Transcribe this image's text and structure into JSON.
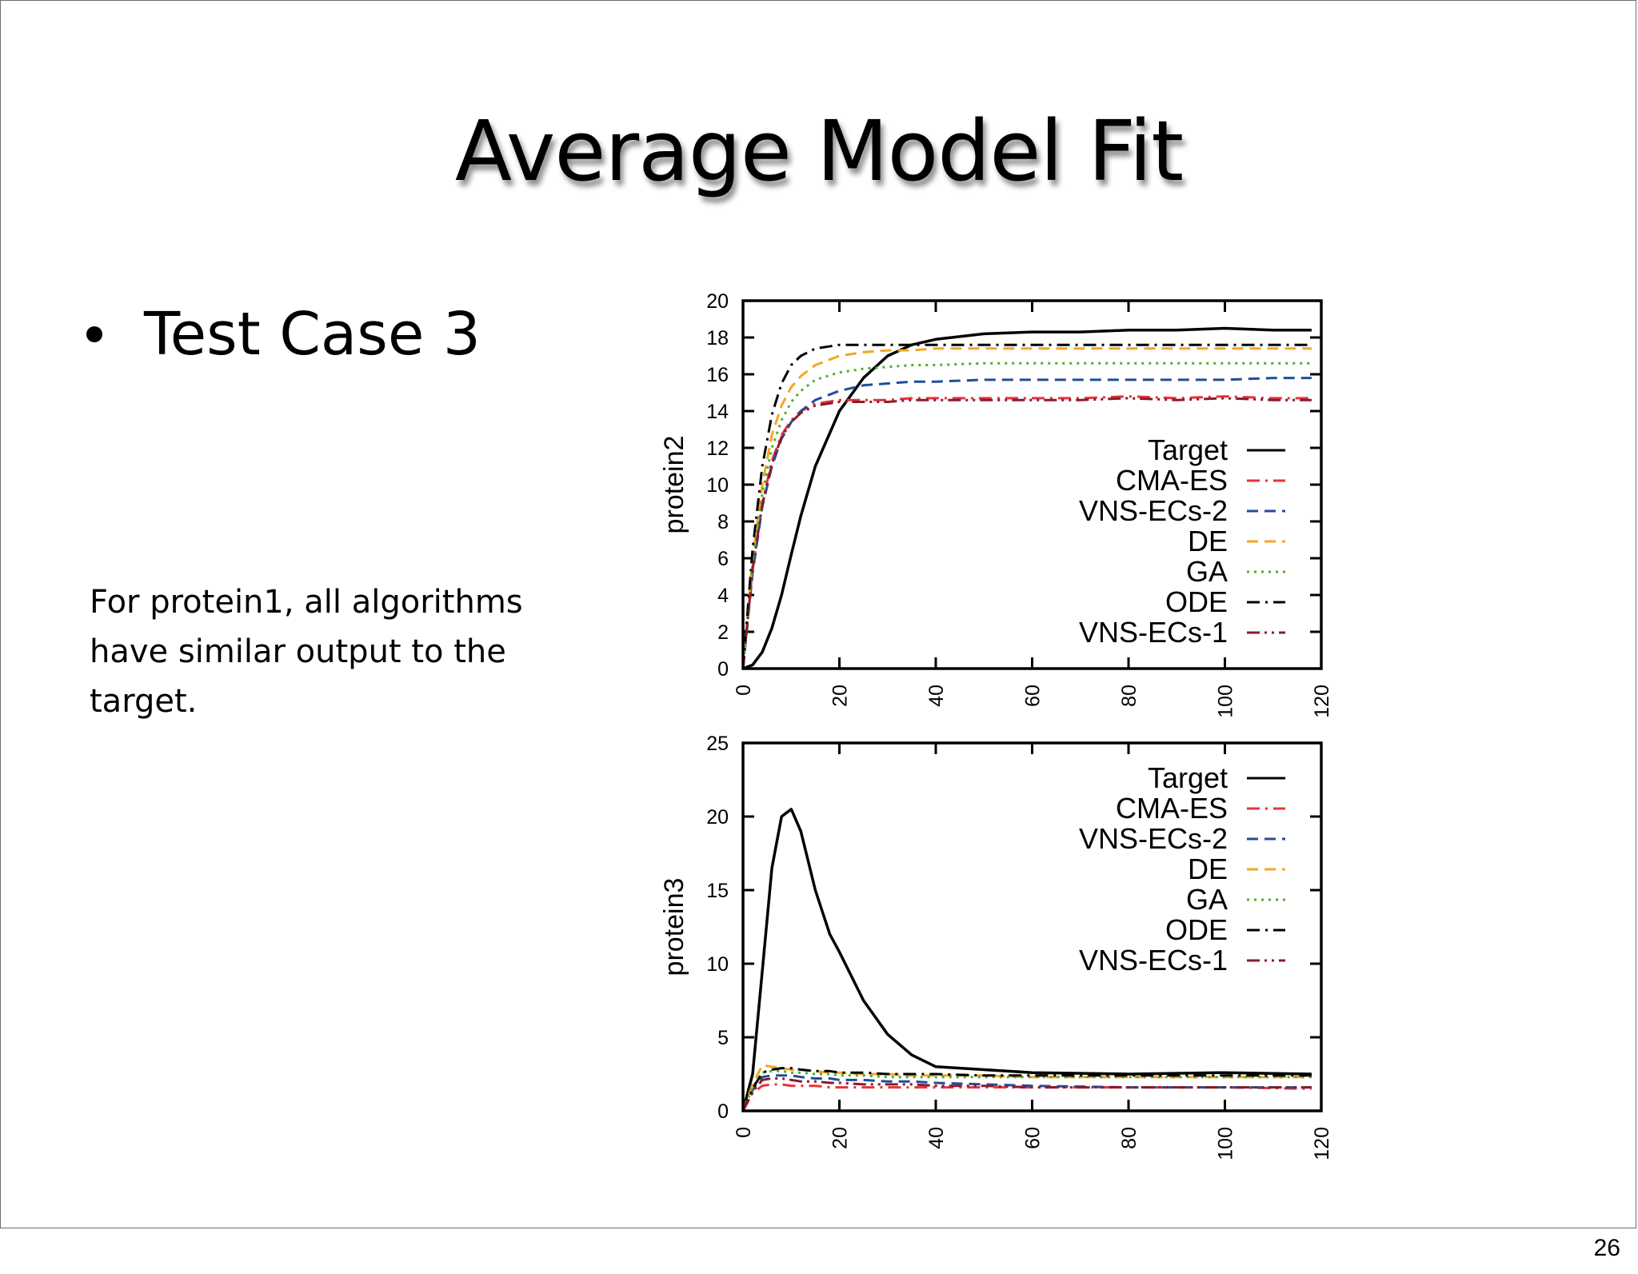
{
  "slide": {
    "title": "Average Model Fit",
    "bullet": "Test Case 3",
    "note": "For protein1, all algorithms have similar output to the target.",
    "page_number": "26"
  },
  "chart_data": [
    {
      "type": "line",
      "title": "",
      "xlabel": "",
      "ylabel": "protein2",
      "xlim": [
        0,
        120
      ],
      "ylim": [
        0,
        20
      ],
      "x_ticks": [
        0,
        20,
        40,
        60,
        80,
        100,
        120
      ],
      "y_ticks": [
        0,
        2,
        4,
        6,
        8,
        10,
        12,
        14,
        16,
        18,
        20
      ],
      "legend_position": "right",
      "x": [
        0,
        2,
        4,
        6,
        8,
        10,
        12,
        15,
        20,
        25,
        30,
        35,
        40,
        50,
        60,
        70,
        80,
        90,
        100,
        110,
        118
      ],
      "series": [
        {
          "name": "Target",
          "color": "#000000",
          "dash": "solid",
          "values": [
            0,
            0.2,
            0.9,
            2.2,
            4.0,
            6.2,
            8.3,
            11.0,
            14.0,
            15.8,
            17.0,
            17.6,
            17.9,
            18.2,
            18.3,
            18.3,
            18.4,
            18.4,
            18.5,
            18.4,
            18.4
          ]
        },
        {
          "name": "CMA-ES",
          "color": "#e8323c",
          "dash": "dash-dot",
          "values": [
            0,
            5.5,
            9.0,
            11.3,
            12.7,
            13.5,
            14.0,
            14.4,
            14.6,
            14.6,
            14.6,
            14.7,
            14.7,
            14.7,
            14.7,
            14.7,
            14.8,
            14.7,
            14.8,
            14.7,
            14.7
          ]
        },
        {
          "name": "VNS-ECs-2",
          "color": "#1f4e9a",
          "dash": "dashed",
          "values": [
            0,
            5.2,
            8.8,
            11.0,
            12.5,
            13.4,
            14.0,
            14.6,
            15.1,
            15.4,
            15.5,
            15.6,
            15.6,
            15.7,
            15.7,
            15.7,
            15.7,
            15.7,
            15.7,
            15.8,
            15.8
          ]
        },
        {
          "name": "DE",
          "color": "#f5a623",
          "dash": "dashed",
          "values": [
            0,
            6.0,
            10.0,
            12.7,
            14.3,
            15.3,
            15.9,
            16.5,
            17.0,
            17.2,
            17.3,
            17.3,
            17.4,
            17.4,
            17.4,
            17.4,
            17.4,
            17.4,
            17.4,
            17.4,
            17.4
          ]
        },
        {
          "name": "GA",
          "color": "#4caf2c",
          "dash": "dotted",
          "values": [
            0,
            5.7,
            9.5,
            12.0,
            13.5,
            14.5,
            15.1,
            15.7,
            16.1,
            16.3,
            16.4,
            16.5,
            16.5,
            16.6,
            16.6,
            16.6,
            16.6,
            16.6,
            16.6,
            16.6,
            16.6
          ]
        },
        {
          "name": "ODE",
          "color": "#000000",
          "dash": "dash-dot",
          "values": [
            0,
            6.5,
            11.0,
            13.8,
            15.5,
            16.5,
            17.0,
            17.4,
            17.6,
            17.6,
            17.6,
            17.6,
            17.6,
            17.6,
            17.6,
            17.6,
            17.6,
            17.6,
            17.6,
            17.6,
            17.6
          ]
        },
        {
          "name": "VNS-ECs-1",
          "color": "#8b1a2b",
          "dash": "dash-dot-dot",
          "values": [
            0,
            5.4,
            8.9,
            11.1,
            12.6,
            13.4,
            13.9,
            14.3,
            14.5,
            14.5,
            14.5,
            14.6,
            14.6,
            14.6,
            14.6,
            14.6,
            14.7,
            14.6,
            14.7,
            14.6,
            14.6
          ]
        }
      ]
    },
    {
      "type": "line",
      "title": "",
      "xlabel": "",
      "ylabel": "protein3",
      "xlim": [
        0,
        120
      ],
      "ylim": [
        0,
        25
      ],
      "x_ticks": [
        0,
        20,
        40,
        60,
        80,
        100,
        120
      ],
      "y_ticks": [
        0,
        5,
        10,
        15,
        20,
        25
      ],
      "legend_position": "top-right",
      "x": [
        0,
        2,
        4,
        6,
        8,
        10,
        12,
        15,
        18,
        20,
        25,
        30,
        35,
        40,
        50,
        60,
        80,
        100,
        118
      ],
      "series": [
        {
          "name": "Target",
          "color": "#000000",
          "dash": "solid",
          "values": [
            0,
            2.5,
            9.5,
            16.5,
            20.0,
            20.5,
            19.0,
            15.0,
            12.0,
            10.8,
            7.5,
            5.2,
            3.8,
            3.0,
            2.8,
            2.6,
            2.5,
            2.6,
            2.5
          ]
        },
        {
          "name": "CMA-ES",
          "color": "#e8323c",
          "dash": "dash-dot",
          "values": [
            0,
            1.2,
            1.7,
            1.8,
            1.8,
            1.7,
            1.7,
            1.7,
            1.6,
            1.6,
            1.6,
            1.6,
            1.6,
            1.6,
            1.6,
            1.6,
            1.6,
            1.6,
            1.5
          ]
        },
        {
          "name": "VNS-ECs-2",
          "color": "#1f4e9a",
          "dash": "dashed",
          "values": [
            0,
            1.4,
            2.3,
            2.4,
            2.4,
            2.4,
            2.3,
            2.2,
            2.2,
            2.1,
            2.1,
            2.0,
            2.0,
            1.9,
            1.8,
            1.7,
            1.6,
            1.6,
            1.6
          ]
        },
        {
          "name": "DE",
          "color": "#f5a623",
          "dash": "dashed",
          "values": [
            0,
            1.8,
            3.1,
            3.0,
            2.9,
            2.8,
            2.8,
            2.7,
            2.6,
            2.6,
            2.5,
            2.5,
            2.4,
            2.4,
            2.4,
            2.3,
            2.3,
            2.3,
            2.3
          ]
        },
        {
          "name": "GA",
          "color": "#4caf2c",
          "dash": "dotted",
          "values": [
            0,
            1.6,
            2.6,
            2.7,
            2.7,
            2.6,
            2.6,
            2.5,
            2.5,
            2.4,
            2.4,
            2.3,
            2.3,
            2.3,
            2.3,
            2.3,
            2.3,
            2.3,
            2.3
          ]
        },
        {
          "name": "ODE",
          "color": "#000000",
          "dash": "dash-dot",
          "values": [
            0,
            1.5,
            2.6,
            2.8,
            2.9,
            2.9,
            2.8,
            2.7,
            2.7,
            2.6,
            2.6,
            2.5,
            2.5,
            2.5,
            2.4,
            2.4,
            2.4,
            2.4,
            2.4
          ]
        },
        {
          "name": "VNS-ECs-1",
          "color": "#8b1a2b",
          "dash": "dash-dot-dot",
          "values": [
            0,
            1.3,
            2.1,
            2.2,
            2.2,
            2.1,
            2.0,
            2.0,
            1.9,
            1.9,
            1.8,
            1.8,
            1.8,
            1.7,
            1.7,
            1.6,
            1.6,
            1.6,
            1.6
          ]
        }
      ]
    }
  ]
}
